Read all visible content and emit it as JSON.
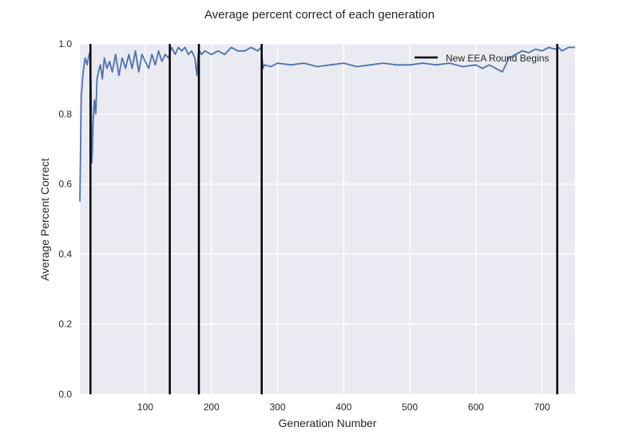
{
  "chart_data": {
    "type": "line",
    "title": "Average percent correct of each generation",
    "xlabel": "Generation Number",
    "ylabel": "Average Percent Correct",
    "xlim": [
      1,
      750
    ],
    "ylim": [
      0.0,
      1.0
    ],
    "xticks": [
      100,
      200,
      300,
      400,
      500,
      600,
      700
    ],
    "yticks": [
      0.0,
      0.2,
      0.4,
      0.6,
      0.8,
      1.0
    ],
    "xtick_labels": [
      "100",
      "200",
      "300",
      "400",
      "500",
      "600",
      "700"
    ],
    "ytick_labels": [
      "0.0",
      "0.2",
      "0.4",
      "0.6",
      "0.8",
      "1.0"
    ],
    "grid": true,
    "legend_position": "top-right",
    "legend_label": "New EEA Round Begins",
    "series": [
      {
        "color": "#4c72b0",
        "x": [
          1,
          3,
          6,
          9,
          12,
          15,
          17,
          18,
          19,
          20,
          21,
          23,
          25,
          27,
          29,
          32,
          35,
          38,
          42,
          46,
          50,
          55,
          60,
          65,
          70,
          75,
          80,
          85,
          90,
          95,
          100,
          105,
          110,
          115,
          120,
          125,
          130,
          135,
          138,
          140,
          145,
          150,
          155,
          160,
          165,
          170,
          175,
          178,
          180,
          182,
          185,
          190,
          200,
          210,
          220,
          230,
          240,
          250,
          260,
          270,
          275,
          278,
          280,
          290,
          300,
          320,
          340,
          360,
          380,
          400,
          420,
          440,
          460,
          480,
          500,
          520,
          540,
          560,
          580,
          600,
          610,
          620,
          625,
          630,
          640,
          650,
          660,
          670,
          680,
          690,
          700,
          710,
          720,
          725,
          730,
          740,
          750
        ],
        "y": [
          0.55,
          0.85,
          0.92,
          0.96,
          0.94,
          0.97,
          0.98,
          0.86,
          0.66,
          0.7,
          0.78,
          0.84,
          0.8,
          0.9,
          0.92,
          0.94,
          0.9,
          0.96,
          0.93,
          0.95,
          0.92,
          0.97,
          0.91,
          0.96,
          0.93,
          0.97,
          0.93,
          0.98,
          0.92,
          0.97,
          0.95,
          0.93,
          0.97,
          0.94,
          0.98,
          0.95,
          0.97,
          0.96,
          0.98,
          0.99,
          0.97,
          0.99,
          0.98,
          0.99,
          0.97,
          0.98,
          0.96,
          0.91,
          0.97,
          0.98,
          0.97,
          0.98,
          0.97,
          0.98,
          0.97,
          0.99,
          0.98,
          0.98,
          0.99,
          0.98,
          0.99,
          0.93,
          0.94,
          0.935,
          0.945,
          0.94,
          0.945,
          0.935,
          0.94,
          0.945,
          0.935,
          0.94,
          0.945,
          0.94,
          0.94,
          0.945,
          0.94,
          0.945,
          0.935,
          0.94,
          0.93,
          0.94,
          0.935,
          0.93,
          0.92,
          0.96,
          0.97,
          0.98,
          0.975,
          0.985,
          0.98,
          0.99,
          0.985,
          0.99,
          0.98,
          0.99,
          0.99
        ]
      }
    ],
    "vlines": {
      "color": "#000000",
      "x": [
        17,
        137,
        181,
        276,
        723
      ]
    }
  }
}
